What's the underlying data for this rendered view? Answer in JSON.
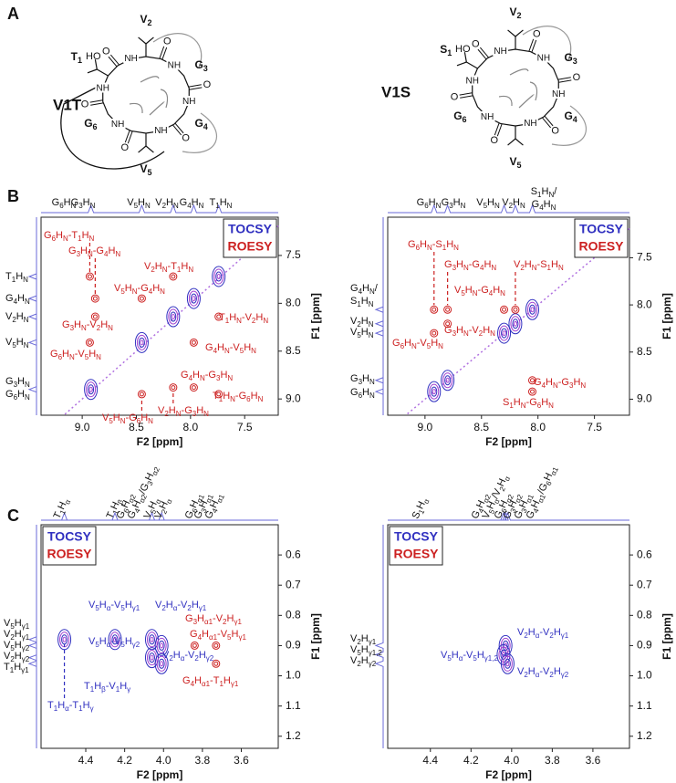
{
  "panel_letters": [
    "A",
    "B",
    "C"
  ],
  "molecules": [
    {
      "name": "V1T",
      "residues": [
        [
          "V",
          "2"
        ],
        [
          "G",
          "3"
        ],
        [
          "G",
          "4"
        ],
        [
          "V",
          "5"
        ],
        [
          "G",
          "6"
        ],
        [
          "T",
          "1"
        ]
      ],
      "amide": "NH",
      "carbonyl": "O",
      "hydroxyl": "HO"
    },
    {
      "name": "V1S",
      "residues": [
        [
          "V",
          "2"
        ],
        [
          "G",
          "3"
        ],
        [
          "G",
          "4"
        ],
        [
          "V",
          "5"
        ],
        [
          "G",
          "6"
        ],
        [
          "S",
          "1"
        ]
      ],
      "amide": "NH",
      "carbonyl": "O",
      "hydroxyl": "HO"
    }
  ],
  "chart_data": [
    {
      "type": "contour",
      "xlabel": "F2 [ppm]",
      "ylabel": "F1 [ppm]",
      "xlim": [
        9.38,
        7.19
      ],
      "ylim": [
        7.1,
        9.17
      ],
      "xticks": [
        {
          "value": 9,
          "label": "9.0"
        },
        8.5,
        {
          "value": 8,
          "label": "8.0"
        },
        7.5
      ],
      "yticks": [
        7.5,
        {
          "value": 8,
          "label": "8.0"
        },
        8.5,
        {
          "value": 9,
          "label": "9.0"
        }
      ],
      "legend": "upper right",
      "top_labels": [
        [
          "G",
          "6",
          "H",
          "N"
        ],
        [
          "G",
          "3",
          "H",
          "N"
        ],
        [
          "V",
          "5",
          "H",
          "N"
        ],
        [
          "V",
          "2",
          "H",
          "N"
        ],
        [
          "G",
          "4",
          "H",
          "N"
        ],
        [
          "T",
          "1",
          "H",
          "N"
        ]
      ],
      "left_labels": [
        [
          "T",
          "1",
          "H",
          "N"
        ],
        [
          "G",
          "4",
          "H",
          "N"
        ],
        [
          "V",
          "2",
          "H",
          "N"
        ],
        [
          "V",
          "5",
          "H",
          "N"
        ],
        [
          "G",
          "3",
          "H",
          "N"
        ],
        [
          "G",
          "6",
          "H",
          "N"
        ]
      ],
      "series": [
        {
          "name": "TOCSY",
          "color": "#3030c0",
          "x": [
            8.92,
            8.45,
            8.16,
            7.97,
            7.74
          ],
          "y": [
            8.9,
            8.41,
            8.14,
            7.95,
            7.72
          ]
        },
        {
          "name": "ROESY",
          "color": "#cc2020",
          "x": [
            8.93,
            8.88,
            8.88,
            8.93,
            8.45,
            8.16,
            8.16,
            8.45,
            7.74,
            7.97,
            7.97,
            7.74
          ],
          "y": [
            7.72,
            7.95,
            8.14,
            8.41,
            8.95,
            8.88,
            7.72,
            7.95,
            8.14,
            8.41,
            8.88,
            8.95
          ],
          "annotations": [
            [
              "G",
              "6",
              "H",
              "N",
              "-T",
              "1",
              "H",
              "N"
            ],
            [
              "G",
              "3",
              "H",
              "N",
              "-G",
              "4",
              "H",
              "N"
            ],
            [
              "G",
              "3",
              "H",
              "N",
              "-V",
              "2",
              "H",
              "N"
            ],
            [
              "G",
              "6",
              "H",
              "N",
              "-V",
              "5",
              "H",
              "N"
            ],
            [
              "V",
              "5",
              "H",
              "N",
              "-G",
              "6",
              "H",
              "N"
            ],
            [
              "V",
              "2",
              "H",
              "N",
              "-G",
              "3",
              "H",
              "N"
            ],
            [
              "V",
              "2",
              "H",
              "N",
              "-T",
              "1",
              "H",
              "N"
            ],
            [
              "V",
              "5",
              "H",
              "N",
              "-G",
              "4",
              "H",
              "N"
            ],
            [
              "T",
              "1",
              "H",
              "N",
              "-V",
              "2",
              "H",
              "N"
            ],
            [
              "G",
              "4",
              "H",
              "N",
              "-V",
              "5",
              "H",
              "N"
            ],
            [
              "G",
              "4",
              "H",
              "N",
              "-G",
              "3",
              "H",
              "N"
            ],
            [
              "T",
              "1",
              "H",
              "N",
              "-G",
              "6",
              "H",
              "N"
            ]
          ]
        }
      ]
    },
    {
      "type": "contour",
      "xlabel": "F2 [ppm]",
      "ylabel": "F1 [ppm]",
      "xlim": [
        9.33,
        7.19
      ],
      "ylim": [
        7.07,
        9.17
      ],
      "xticks": [
        {
          "value": 9,
          "label": "9.0"
        },
        8.5,
        {
          "value": 8,
          "label": "8.0"
        },
        7.5
      ],
      "yticks": [
        7.5,
        {
          "value": 8,
          "label": "8.0"
        },
        8.5,
        {
          "value": 9,
          "label": "9.0"
        }
      ],
      "legend": "upper right",
      "top_labels": [
        [
          "G",
          "6",
          "H",
          "N"
        ],
        [
          "G",
          "3",
          "H",
          "N"
        ],
        [
          "V",
          "5",
          "H",
          "N"
        ],
        [
          "V",
          "2",
          "H",
          "N"
        ],
        [
          "S",
          "1",
          "H",
          "N",
          "/"
        ],
        [
          "G",
          "4",
          "H",
          "N"
        ]
      ],
      "left_labels": [
        [
          "G",
          "4",
          "H",
          "N",
          "/"
        ],
        [
          "S",
          "1",
          "H",
          "N"
        ],
        [
          "V",
          "2",
          "H",
          "N"
        ],
        [
          "V",
          "5",
          "H",
          "N"
        ],
        [
          "G",
          "3",
          "H",
          "N"
        ],
        [
          "G",
          "6",
          "H",
          "N"
        ]
      ],
      "series": [
        {
          "name": "TOCSY",
          "color": "#3030c0",
          "x": [
            8.92,
            8.8,
            8.3,
            8.2,
            8.05
          ],
          "y": [
            8.92,
            8.8,
            8.3,
            8.2,
            8.05
          ]
        },
        {
          "name": "ROESY",
          "color": "#cc2020",
          "x": [
            8.92,
            8.8,
            8.3,
            8.2,
            8.92,
            8.8,
            8.05,
            8.05
          ],
          "y": [
            8.05,
            8.05,
            8.05,
            8.05,
            8.3,
            8.2,
            8.8,
            8.92
          ],
          "annotations": [
            [
              "G",
              "6",
              "H",
              "N",
              "-S",
              "1",
              "H",
              "N"
            ],
            [
              "G",
              "3",
              "H",
              "N",
              "-G",
              "4",
              "H",
              "N"
            ],
            [
              "V",
              "5",
              "H",
              "N",
              "-G",
              "4",
              "H",
              "N"
            ],
            [
              "V",
              "2",
              "H",
              "N",
              "-S",
              "1",
              "H",
              "N"
            ],
            [
              "G",
              "6",
              "H",
              "N",
              "-V",
              "5",
              "H",
              "N"
            ],
            [
              "G",
              "3",
              "H",
              "N",
              "-V",
              "2",
              "H",
              "N"
            ],
            [
              "G",
              "4",
              "H",
              "N",
              "-G",
              "3",
              "H",
              "N"
            ],
            [
              "S",
              "1",
              "H",
              "N",
              "-G",
              "6",
              "H",
              "N"
            ]
          ]
        }
      ]
    },
    {
      "type": "contour",
      "xlabel": "F2 [ppm]",
      "ylabel": "F1 [ppm]",
      "xlim": [
        4.63,
        3.41
      ],
      "ylim": [
        0.5,
        1.24
      ],
      "xticks": [
        4.4,
        4.2,
        {
          "value": 4,
          "label": "4.0"
        },
        3.8,
        3.6
      ],
      "yticks": [
        0.6,
        0.7,
        0.8,
        0.9,
        {
          "value": 1,
          "label": "1.0"
        },
        1.1,
        1.2
      ],
      "legend": "upper left",
      "top_labels": [
        [
          "T",
          "1",
          "H",
          "α"
        ],
        [
          "T",
          "1",
          "H",
          "β"
        ],
        [
          "G",
          "6",
          "H",
          "α2"
        ],
        [
          "G",
          "4",
          "H",
          "α2",
          "/G",
          "3",
          "H",
          "α2"
        ],
        [
          "V",
          "5",
          "H",
          "α"
        ],
        [
          "V",
          "2",
          "H",
          "α"
        ],
        [
          "G",
          "6",
          "H",
          "α1"
        ],
        [
          "G",
          "3",
          "H",
          "α1"
        ],
        [
          "G",
          "4",
          "H",
          "α1"
        ]
      ],
      "left_labels": [
        [
          "V",
          "5",
          "H",
          "γ1"
        ],
        [
          "V",
          "2",
          "H",
          "γ1"
        ],
        [
          "V",
          "5",
          "H",
          "γ2"
        ],
        [
          "V",
          "2",
          "H",
          "γ2"
        ],
        [
          "T",
          "1",
          "H",
          "γ1"
        ]
      ],
      "series": [
        {
          "name": "TOCSY",
          "color": "#3030c0",
          "x": [
            4.06,
            4.01,
            4.06,
            4.01,
            4.25,
            4.51
          ],
          "y": [
            0.88,
            0.9,
            0.94,
            0.96,
            0.88,
            0.88
          ],
          "annotations": [
            [
              "V",
              "5",
              "H",
              "α",
              "-V",
              "5",
              "H",
              "γ1"
            ],
            [
              "V",
              "2",
              "H",
              "α",
              "-V",
              "2",
              "H",
              "γ1"
            ],
            [
              "V",
              "5",
              "H",
              "α",
              "-V",
              "5",
              "H",
              "γ2"
            ],
            [
              "V",
              "2",
              "H",
              "α",
              "-V",
              "2",
              "H",
              "γ2"
            ],
            [
              "T",
              "1",
              "H",
              "β",
              "-V",
              "1",
              "H",
              "γ"
            ],
            [
              "T",
              "1",
              "H",
              "α",
              "-T",
              "1",
              "H",
              "γ"
            ]
          ]
        },
        {
          "name": "ROESY",
          "color": "#cc2020",
          "x": [
            3.84,
            3.73,
            3.73
          ],
          "y": [
            0.9,
            0.9,
            0.96
          ],
          "annotations": [
            [
              "G",
              "3",
              "H",
              "α1",
              "-V",
              "2",
              "H",
              "γ1"
            ],
            [
              "G",
              "4",
              "H",
              "α1",
              "-V",
              "5",
              "H",
              "γ1"
            ],
            [
              "G",
              "4",
              "H",
              "α1",
              "-T",
              "1",
              "H",
              "γ1"
            ]
          ]
        }
      ]
    },
    {
      "type": "contour",
      "xlabel": "F2 [ppm]",
      "ylabel": "F1 [ppm]",
      "xlim": [
        4.61,
        3.42
      ],
      "ylim": [
        0.5,
        1.24
      ],
      "xticks": [
        4.4,
        4.2,
        {
          "value": 4,
          "label": "4.0"
        },
        3.8,
        3.6
      ],
      "yticks": [
        0.6,
        0.7,
        0.8,
        0.9,
        {
          "value": 1,
          "label": "1.0"
        },
        1.1,
        1.2
      ],
      "legend": "upper left",
      "top_labels": [
        [
          "S",
          "1",
          "H",
          "α"
        ],
        [
          "G",
          "4",
          "H",
          "α2"
        ],
        [
          "V",
          "5",
          "H",
          "α",
          "/V",
          "2",
          "H",
          "α"
        ],
        [
          "G",
          "6",
          "H",
          "α2"
        ],
        [
          "G",
          "3",
          "H",
          "α2"
        ],
        [
          "G",
          "3",
          "H",
          "α1"
        ],
        [
          "G",
          "4",
          "H",
          "α1",
          "/G",
          "6",
          "H",
          "α1"
        ]
      ],
      "left_labels": [
        [
          "V",
          "2",
          "H",
          "γ1"
        ],
        [
          "V",
          "5",
          "H",
          "γ1,2"
        ],
        [
          "V",
          "2",
          "H",
          "γ2"
        ]
      ],
      "series": [
        {
          "name": "TOCSY",
          "color": "#3030c0",
          "x": [
            4.03,
            4.04,
            4.02
          ],
          "y": [
            0.9,
            0.93,
            0.96
          ],
          "annotations": [
            [
              "V",
              "2",
              "H",
              "α",
              "-V",
              "2",
              "H",
              "γ1"
            ],
            [
              "V",
              "5",
              "H",
              "α",
              "-V",
              "5",
              "H",
              "γ1,2"
            ],
            [
              "V",
              "2",
              "H",
              "α",
              "-V",
              "2",
              "H",
              "γ2"
            ]
          ]
        },
        {
          "name": "ROESY",
          "color": "#cc2020",
          "x": [],
          "y": []
        }
      ]
    }
  ]
}
